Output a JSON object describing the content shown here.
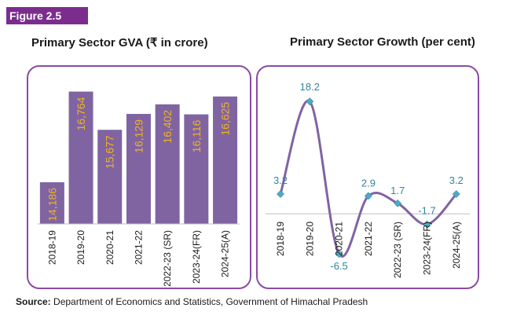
{
  "figure_label": "Figure 2.5",
  "source": {
    "label": "Source:",
    "text": "Department of Economics and Statistics, Government of Himachal Pradesh"
  },
  "colors": {
    "bar": "#8064a2",
    "bar_label": "#f0b41e",
    "line": "#8064a2",
    "marker": "#4bacc6",
    "point_label": "#31859c",
    "panel_border": "#8a4aa6",
    "figure_label_bg": "#7b2d8e"
  },
  "chart_data": [
    {
      "type": "bar",
      "title": "Primary Sector GVA (₹ in crore)",
      "categories": [
        "2018-19",
        "2019-20",
        "2020-21",
        "2021-22",
        "2022-23 (SR)",
        "2023-24(FR)",
        "2024-25(A)"
      ],
      "values": [
        14186,
        16764,
        15677,
        16129,
        16402,
        16116,
        16625
      ],
      "value_labels": [
        "14,186",
        "16,764",
        "15,677",
        "16,129",
        "16,402",
        "16,116",
        "16,625"
      ],
      "ylim": [
        13000,
        17000
      ],
      "grid": false,
      "legend": "none"
    },
    {
      "type": "line",
      "title": "Primary Sector Growth (per cent)",
      "categories": [
        "2018-19",
        "2019-20",
        "2020-21",
        "2021-22",
        "2022-23 (SR)",
        "2023-24(FR)",
        "2024-25(A)"
      ],
      "values": [
        3.2,
        18.2,
        -6.5,
        2.9,
        1.7,
        -1.7,
        3.2
      ],
      "value_labels": [
        "3.2",
        "18.2",
        "-6.5",
        "2.9",
        "1.7",
        "-1.7",
        "3.2"
      ],
      "ylim": [
        -8,
        20
      ],
      "smooth": true,
      "grid": false,
      "legend": "none"
    }
  ]
}
